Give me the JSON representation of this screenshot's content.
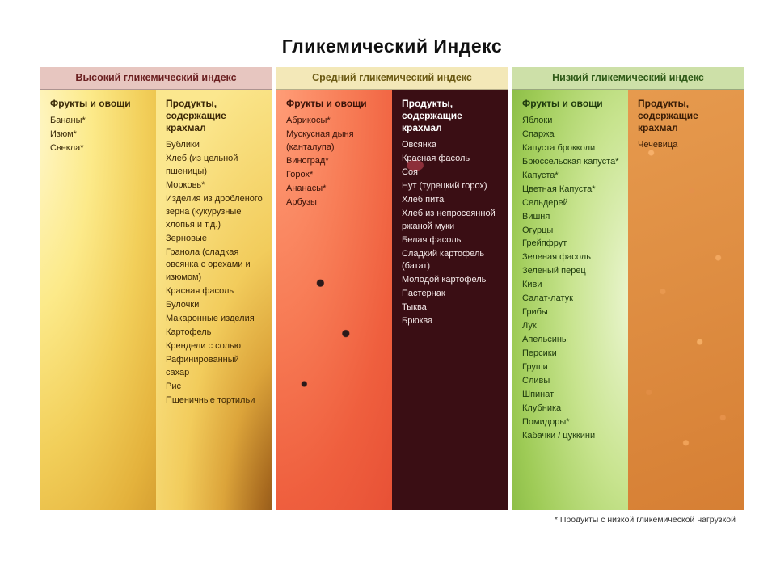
{
  "title": "Гликемический Индекс",
  "footnote": "* Продукты с низкой гликемической нагрузкой",
  "panels": [
    {
      "header": "Высокий гликемический индекс",
      "header_class": "hdr-high",
      "cols": [
        {
          "bg": "bg-high-a",
          "heading": "Фрукты и овощи",
          "items": [
            "Бананы*",
            "Изюм*",
            "Свекла*"
          ]
        },
        {
          "bg": "bg-high-b",
          "heading": "Продукты, содержащие крахмал",
          "items": [
            "Бублики",
            "Хлеб (из цельной пшеницы)",
            "Морковь*",
            "Изделия из дробленого зерна (кукурузные хлопья и т.д.)",
            "Зерновые",
            "Гранола (сладкая овсянка с орехами и изюмом)",
            "Красная фасоль",
            "Булочки",
            "Макаронные изделия",
            "Картофель",
            "Крендели с солью",
            "Рафинированный сахар",
            "Рис",
            "Пшеничные тортильи"
          ]
        }
      ]
    },
    {
      "header": "Средний гликемический индекс",
      "header_class": "hdr-medium",
      "cols": [
        {
          "bg": "bg-med-a",
          "heading": "Фрукты и овощи",
          "items": [
            "Абрикосы*",
            "Мускусная дыня (канталупа)",
            "Виноград*",
            "Горох*",
            "Ананасы*",
            "Арбузы"
          ]
        },
        {
          "bg": "bg-med-b",
          "heading": "Продукты, содержащие крахмал",
          "items": [
            "Овсянка",
            "Красная фасоль",
            "Соя",
            "Нут (турецкий горох)",
            "Хлеб пита",
            "Хлеб из непросеянной ржаной муки",
            "Белая фасоль",
            "Сладкий картофель (батат)",
            "Молодой картофель",
            "Пастернак",
            "Тыква",
            "Брюква"
          ]
        }
      ]
    },
    {
      "header": "Низкий гликемический индекс",
      "header_class": "hdr-low",
      "cols": [
        {
          "bg": "bg-low-a",
          "heading": "Фрукты и овощи",
          "items": [
            "Яблоки",
            "Спаржа",
            "Капуста брокколи",
            "Брюссельская капуста*",
            "Капуста*",
            "Цветная Капуста*",
            "Сельдерей",
            "Вишня",
            "Огурцы",
            "Грейпфрут",
            "Зеленая фасоль",
            "Зеленый перец",
            "Киви",
            "Салат-латук",
            "Грибы",
            "Лук",
            "Апельсины",
            "Персики",
            "Груши",
            "Сливы",
            "Шпинат",
            "Клубника",
            "Помидоры*",
            "Кабачки / цуккини"
          ]
        },
        {
          "bg": "bg-low-b",
          "heading": "Продукты, содержащие крахмал",
          "items": [
            "Чечевица"
          ]
        }
      ]
    }
  ]
}
